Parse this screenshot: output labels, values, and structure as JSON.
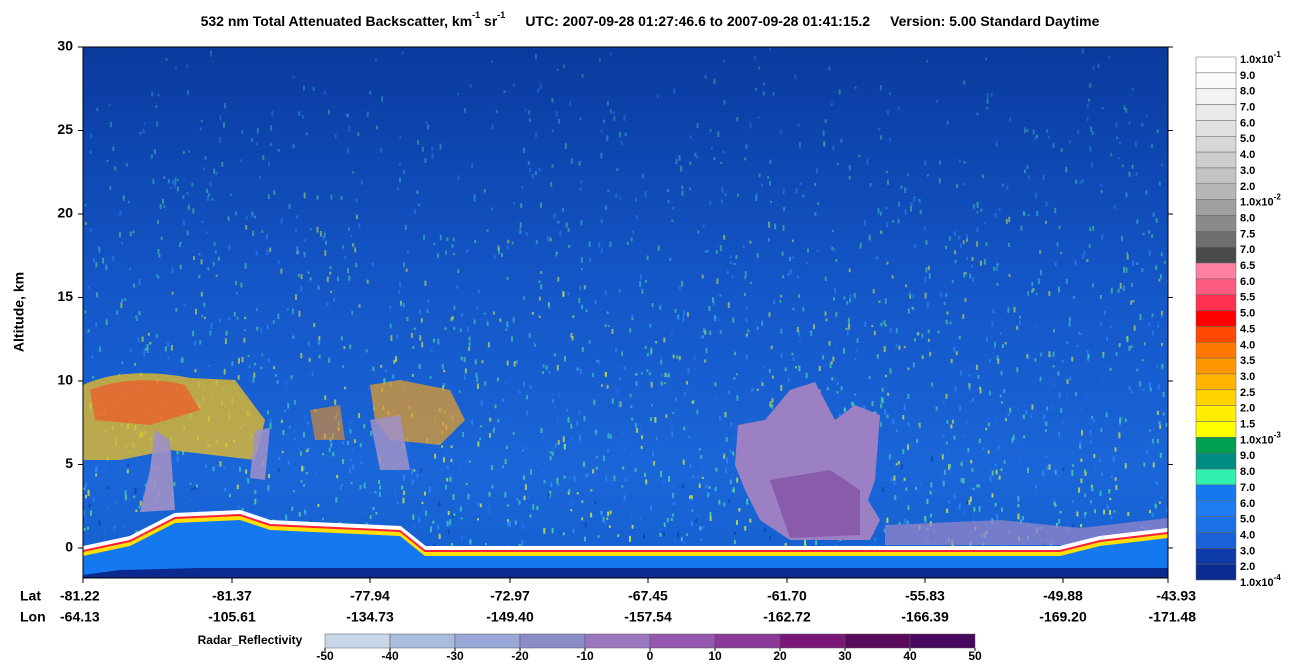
{
  "chart_data": {
    "type": "curtain",
    "title": {
      "main": "532 nm Total Attenuated Backscatter, km",
      "sup1": "-1",
      "mid": " sr",
      "sup2": "-1",
      "utc": "UTC:  2007-09-28 01:27:46.6  to  2007-09-28 01:41:15.2",
      "version": "Version: 5.00  Standard  Daytime"
    },
    "y_label": "Altitude, km",
    "ylim": [
      -1.8,
      30
    ],
    "yticks": [
      0,
      5,
      10,
      15,
      20,
      25,
      30
    ],
    "x_axis": {
      "lat_label": "Lat",
      "lon_label": "Lon",
      "lat": [
        "-81.22",
        "-81.37",
        "-77.94",
        "-72.97",
        "-67.45",
        "-61.70",
        "-55.83",
        "-49.88",
        "-43.93"
      ],
      "lon": [
        "-64.13",
        "-105.61",
        "-134.73",
        "-149.40",
        "-157.54",
        "-162.72",
        "-166.39",
        "-169.20",
        "-171.48"
      ]
    },
    "colorbar": {
      "labels": [
        {
          "text": "1.0x10",
          "sup": "-1"
        },
        {
          "text": "9.0"
        },
        {
          "text": "8.0"
        },
        {
          "text": "7.0"
        },
        {
          "text": "6.0"
        },
        {
          "text": "5.0"
        },
        {
          "text": "4.0"
        },
        {
          "text": "3.0"
        },
        {
          "text": "2.0"
        },
        {
          "text": "1.0x10",
          "sup": "-2"
        },
        {
          "text": "8.0"
        },
        {
          "text": "7.5"
        },
        {
          "text": "7.0"
        },
        {
          "text": "6.5"
        },
        {
          "text": "6.0"
        },
        {
          "text": "5.5"
        },
        {
          "text": "5.0"
        },
        {
          "text": "4.5"
        },
        {
          "text": "4.0"
        },
        {
          "text": "3.5"
        },
        {
          "text": "3.0"
        },
        {
          "text": "2.5"
        },
        {
          "text": "2.0"
        },
        {
          "text": "1.5"
        },
        {
          "text": "1.0x10",
          "sup": "-3"
        },
        {
          "text": "9.0"
        },
        {
          "text": "8.0"
        },
        {
          "text": "7.0"
        },
        {
          "text": "6.0"
        },
        {
          "text": "5.0"
        },
        {
          "text": "4.0"
        },
        {
          "text": "3.0"
        },
        {
          "text": "2.0"
        },
        {
          "text": "1.0x10",
          "sup": "-4"
        }
      ],
      "colors": [
        "#ffffff",
        "#fafafa",
        "#f2f2f2",
        "#eaeaea",
        "#e1e1e1",
        "#d7d7d7",
        "#cdcdcd",
        "#c3c3c3",
        "#b6b6b6",
        "#a0a0a0",
        "#8a8a8a",
        "#6e6e6e",
        "#4a4a4a",
        "#ff80a0",
        "#ff5a80",
        "#ff3050",
        "#ff0000",
        "#ff4800",
        "#ff7800",
        "#ff9600",
        "#ffb400",
        "#ffd200",
        "#ffee00",
        "#ffff00",
        "#00a050",
        "#008c82",
        "#30f0b0",
        "#1478f0",
        "#1e7cf0",
        "#1c70e6",
        "#1a60d8",
        "#0d3ca8",
        "#0a2a90"
      ]
    },
    "radar": {
      "label": "Radar_Reflectivity",
      "ticks": [
        -50,
        -40,
        -30,
        -20,
        -10,
        0,
        10,
        20,
        30,
        40,
        50
      ],
      "colors": [
        "#c8d8e8",
        "#a8bcdc",
        "#9aa8d8",
        "#8c8cc8",
        "#9a78c0",
        "#9458b0",
        "#8a3a98",
        "#7a1878",
        "#5a0a5a",
        "#48085e",
        "#3a0a80"
      ]
    }
  }
}
